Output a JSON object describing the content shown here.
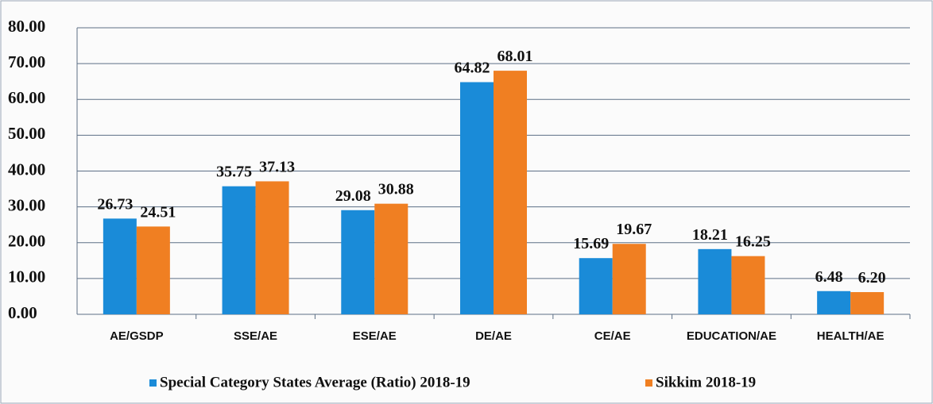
{
  "chart_data": {
    "type": "bar",
    "categories": [
      "AE/GSDP",
      "SSE/AE",
      "ESE/AE",
      "DE/AE",
      "CE/AE",
      "EDUCATION/AE",
      "HEALTH/AE"
    ],
    "series": [
      {
        "name": "Special Category States Average (Ratio) 2018-19",
        "color": "#1a8bd8",
        "values": [
          26.73,
          35.75,
          29.08,
          64.82,
          15.69,
          18.21,
          6.48
        ],
        "value_labels": [
          "26.73",
          "35.75",
          "29.08",
          "64.82",
          "15.69",
          "18.21",
          "6.48"
        ]
      },
      {
        "name": "Sikkim 2018-19",
        "color": "#f07f22",
        "values": [
          24.51,
          37.13,
          30.88,
          68.01,
          19.67,
          16.25,
          6.2
        ],
        "value_labels": [
          "24.51",
          "37.13",
          "30.88",
          "68.01",
          "19.67",
          "16.25",
          "6.20"
        ]
      }
    ],
    "ylim": [
      0,
      80
    ],
    "yticks": [
      {
        "value": 0,
        "label": "0.00"
      },
      {
        "value": 10,
        "label": "10.00"
      },
      {
        "value": 20,
        "label": "20.00"
      },
      {
        "value": 30,
        "label": "30.00"
      },
      {
        "value": 40,
        "label": "40.00"
      },
      {
        "value": 50,
        "label": "50.00"
      },
      {
        "value": 60,
        "label": "60.00"
      },
      {
        "value": 70,
        "label": "70.00"
      },
      {
        "value": 80,
        "label": "80.00"
      }
    ],
    "grid": true,
    "legend": "bottom"
  }
}
